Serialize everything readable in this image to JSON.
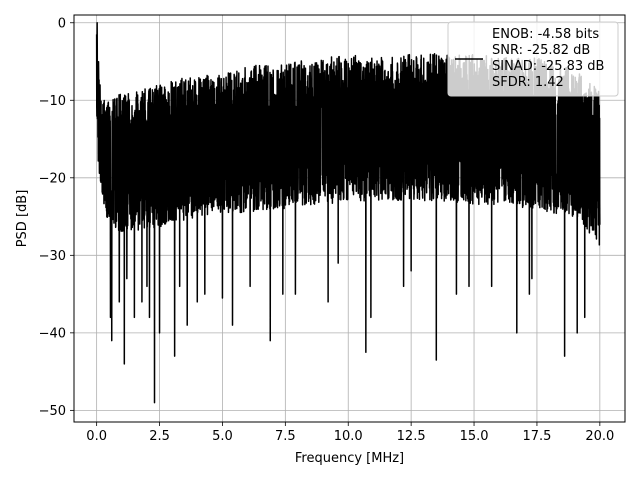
{
  "chart_data": {
    "type": "line",
    "title": "",
    "xlabel": "Frequency [MHz]",
    "ylabel": "PSD [dB]",
    "xlim": [
      -0.9,
      21.0
    ],
    "ylim": [
      -51.5,
      1.0
    ],
    "grid": true,
    "legend_position": "top-right",
    "x_ticks": [
      0.0,
      2.5,
      5.0,
      7.5,
      10.0,
      12.5,
      15.0,
      17.5,
      20.0
    ],
    "x_tick_labels": [
      "0.0",
      "2.5",
      "5.0",
      "7.5",
      "10.0",
      "12.5",
      "15.0",
      "17.5",
      "20.0"
    ],
    "y_ticks": [
      0,
      -10,
      -20,
      -30,
      -40,
      -50
    ],
    "y_tick_labels": [
      "0",
      "−10",
      "−20",
      "−30",
      "−40",
      "−50"
    ],
    "series": [
      {
        "color": "#000000",
        "envelope_x": [
          0.0,
          0.02,
          0.05,
          0.1,
          0.2,
          0.4,
          0.6,
          0.8,
          1.0,
          1.25,
          1.5,
          2.0,
          2.5,
          3.0,
          3.5,
          4.0,
          5.0,
          6.0,
          7.0,
          7.5,
          8.0,
          9.0,
          10.0,
          11.0,
          12.0,
          12.5,
          13.0,
          14.0,
          15.0,
          16.0,
          17.0,
          17.5,
          18.0,
          19.0,
          20.0
        ],
        "envelope_upper": [
          -1.5,
          0.0,
          -4.0,
          -6.0,
          -9.0,
          -10.0,
          -9.5,
          -9.5,
          -9.0,
          -9.0,
          -8.5,
          -8.5,
          -8.0,
          -7.5,
          -7.0,
          -7.0,
          -6.5,
          -5.5,
          -5.5,
          -5.0,
          -5.0,
          -4.5,
          -4.0,
          -4.5,
          -4.0,
          -4.0,
          -4.0,
          -4.0,
          -4.0,
          -4.5,
          -4.5,
          -4.5,
          -5.0,
          -6.0,
          -8.5
        ],
        "envelope_lower": [
          -15.0,
          -10.0,
          -18.0,
          -20.0,
          -22.0,
          -25.0,
          -26.0,
          -27.0,
          -27.0,
          -27.0,
          -27.0,
          -26.5,
          -26.5,
          -25.5,
          -25.5,
          -25.0,
          -24.5,
          -24.5,
          -24.0,
          -24.0,
          -23.5,
          -23.5,
          -23.0,
          -23.0,
          -23.0,
          -23.0,
          -23.0,
          -23.0,
          -23.5,
          -23.5,
          -24.0,
          -24.0,
          -24.5,
          -25.0,
          -29.0
        ],
        "notable_dips": [
          {
            "x": 0.6,
            "y": -41.0
          },
          {
            "x": 1.1,
            "y": -44.0
          },
          {
            "x": 0.55,
            "y": -38.0
          },
          {
            "x": 0.9,
            "y": -36.0
          },
          {
            "x": 1.2,
            "y": -33.0
          },
          {
            "x": 1.5,
            "y": -38.0
          },
          {
            "x": 1.8,
            "y": -36.0
          },
          {
            "x": 2.0,
            "y": -34.0
          },
          {
            "x": 2.1,
            "y": -38.0
          },
          {
            "x": 2.3,
            "y": -49.0
          },
          {
            "x": 2.5,
            "y": -40.0
          },
          {
            "x": 3.1,
            "y": -43.0
          },
          {
            "x": 3.3,
            "y": -34.0
          },
          {
            "x": 3.6,
            "y": -39.0
          },
          {
            "x": 4.0,
            "y": -36.0
          },
          {
            "x": 4.3,
            "y": -35.0
          },
          {
            "x": 5.0,
            "y": -35.5
          },
          {
            "x": 5.4,
            "y": -39.0
          },
          {
            "x": 6.1,
            "y": -34.0
          },
          {
            "x": 6.9,
            "y": -41.0
          },
          {
            "x": 7.4,
            "y": -35.0
          },
          {
            "x": 7.9,
            "y": -35.0
          },
          {
            "x": 9.2,
            "y": -36.0
          },
          {
            "x": 9.6,
            "y": -31.0
          },
          {
            "x": 10.7,
            "y": -42.5
          },
          {
            "x": 10.9,
            "y": -38.0
          },
          {
            "x": 12.2,
            "y": -34.0
          },
          {
            "x": 12.5,
            "y": -32.0
          },
          {
            "x": 13.5,
            "y": -43.5
          },
          {
            "x": 14.3,
            "y": -35.0
          },
          {
            "x": 14.8,
            "y": -34.0
          },
          {
            "x": 15.7,
            "y": -34.0
          },
          {
            "x": 16.7,
            "y": -40.0
          },
          {
            "x": 17.2,
            "y": -35.0
          },
          {
            "x": 17.3,
            "y": -33.0
          },
          {
            "x": 18.6,
            "y": -43.0
          },
          {
            "x": 19.1,
            "y": -40.0
          },
          {
            "x": 19.4,
            "y": -38.0
          }
        ]
      }
    ],
    "legend_lines": [
      "ENOB: -4.58 bits",
      "SNR: -25.82 dB",
      "SINAD: -25.83 dB",
      "SFDR: 1.42"
    ]
  }
}
